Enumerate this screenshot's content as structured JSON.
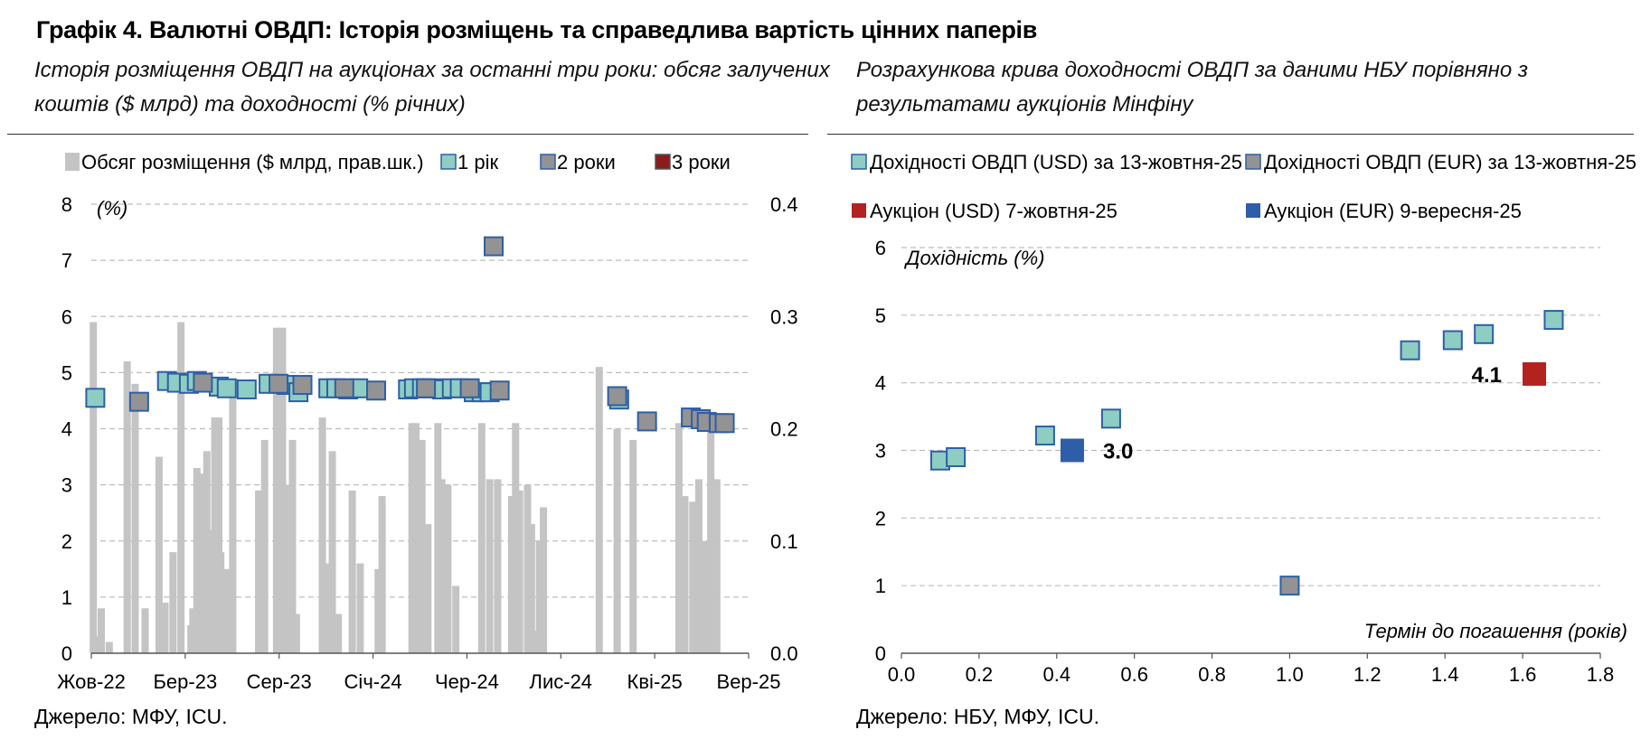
{
  "figure": {
    "title": "Графік 4. Валютні ОВДП: Історія розміщень та справедлива вартість цінних паперів"
  },
  "left_panel": {
    "subtitle_line1": "Історія розміщення ОВДП на аукціонах за останні три роки: обсяг залучених",
    "subtitle_line2": "коштів ($ млрд) та доходності (% річних)",
    "source": "Джерело: МФУ, ICU."
  },
  "right_panel": {
    "subtitle_line1": "Розрахункова крива доходності ОВДП за даними НБУ порівняно з",
    "subtitle_line2": "результатами аукціонів Мінфіну",
    "source": "Джерело: НБУ, МФУ, ICU."
  },
  "chart_data": [
    {
      "type": "bar",
      "combo": "bar + scatter (dual axis)",
      "y_unit_label": "(%)",
      "ylim": [
        0,
        8
      ],
      "yticks": [
        "0",
        "1",
        "2",
        "3",
        "4",
        "5",
        "6",
        "7",
        "8"
      ],
      "y2lim": [
        0,
        0.4
      ],
      "y2ticks": [
        "0.0",
        "0.1",
        "0.2",
        "0.3",
        "0.4"
      ],
      "x_tick_labels": [
        "Жов-22",
        "Бер-23",
        "Сер-23",
        "Січ-24",
        "Чер-24",
        "Лис-24",
        "Кві-25",
        "Вер-25"
      ],
      "grid": "horizontal dashed",
      "legend_position": "top",
      "legend": [
        {
          "label": "Обсяг розміщення ($ млрд, прав.шк.)",
          "color": "#c4c4c4",
          "kind": "bar"
        },
        {
          "label": "1 рік",
          "color": "#8ecdc2",
          "border": "#2e5fa6",
          "kind": "square"
        },
        {
          "label": "2 роки",
          "color": "#939393",
          "border": "#2e5fa6",
          "kind": "square"
        },
        {
          "label": "3 роки",
          "color": "#8a1c1c",
          "border": "#555555",
          "kind": "square"
        }
      ],
      "placement_volume_bn_usd": {
        "x_month_index": [
          0.1,
          0.3,
          0.5,
          0.9,
          1.8,
          2.2,
          2.7,
          3.4,
          3.7,
          4.1,
          4.5,
          5.0,
          5.1,
          5.3,
          5.6,
          5.8,
          6.0,
          6.2,
          6.4,
          6.5,
          6.8,
          7.1,
          8.4,
          8.7,
          9.3,
          9.6,
          9.8,
          10.1,
          10.3,
          11.6,
          11.8,
          12.1,
          12.4,
          13.1,
          13.5,
          14.4,
          14.6,
          16.1,
          16.3,
          16.6,
          16.9,
          17.4,
          17.6,
          17.9,
          18.3,
          19.6,
          20.0,
          20.4,
          21.1,
          21.3,
          21.5,
          21.9,
          22.1,
          22.3,
          22.5,
          22.7,
          25.5,
          26.4,
          27.2,
          29.5,
          29.8,
          30.2,
          30.5,
          30.8,
          31.1,
          31.4
        ],
        "values": [
          0.295,
          0.015,
          0.04,
          0.01,
          0.26,
          0.24,
          0.04,
          0.175,
          0.045,
          0.09,
          0.295,
          0.025,
          0.04,
          0.165,
          0.16,
          0.18,
          0.11,
          0.21,
          0.21,
          0.09,
          0.075,
          0.23,
          0.145,
          0.19,
          0.29,
          0.29,
          0.15,
          0.19,
          0.035,
          0.21,
          0.08,
          0.18,
          0.035,
          0.145,
          0.08,
          0.075,
          0.14,
          0.205,
          0.205,
          0.19,
          0.115,
          0.205,
          0.155,
          0.15,
          0.06,
          0.205,
          0.155,
          0.155,
          0.14,
          0.205,
          0.145,
          0.15,
          0.115,
          0.02,
          0.1,
          0.13,
          0.255,
          0.2,
          0.19,
          0.205,
          0.14,
          0.135,
          0.155,
          0.1,
          0.2,
          0.155
        ]
      },
      "yield_1y": {
        "x_month_index": [
          0.2,
          3.8,
          4.3,
          4.9,
          5.3,
          6.4,
          6.8,
          7.8,
          8.9,
          9.8,
          10.4,
          11.9,
          12.3,
          12.9,
          13.4,
          15.9,
          16.2,
          16.6,
          17.1,
          17.6,
          18.1,
          18.5,
          19.2,
          19.6,
          20.0,
          26.5
        ],
        "values": [
          4.55,
          4.85,
          4.82,
          4.8,
          4.85,
          4.75,
          4.72,
          4.7,
          4.8,
          4.78,
          4.65,
          4.72,
          4.72,
          4.7,
          4.72,
          4.7,
          4.72,
          4.72,
          4.72,
          4.7,
          4.72,
          4.72,
          4.65,
          4.65,
          4.65,
          4.52
        ]
      },
      "yield_2y": {
        "x_month_index": [
          2.4,
          5.6,
          9.4,
          10.6,
          12.7,
          14.3,
          16.8,
          19.0,
          20.5,
          26.4,
          27.9,
          30.1,
          30.6,
          30.9,
          31.5,
          31.8
        ],
        "values": [
          4.48,
          4.82,
          4.8,
          4.78,
          4.72,
          4.68,
          4.72,
          4.72,
          4.68,
          4.58,
          4.13,
          4.2,
          4.17,
          4.12,
          4.1,
          4.1
        ],
        "outliers": [
          {
            "x_month_index": 20.2,
            "value": 7.25
          }
        ]
      },
      "yield_3y": {
        "x_month_index": [],
        "values": []
      }
    },
    {
      "type": "scatter",
      "xlabel": "Термін до погашення (років)",
      "ylabel": "Дохідність (%)",
      "xlim": [
        0,
        1.8
      ],
      "ylim": [
        0,
        6
      ],
      "xticks": [
        "0.0",
        "0.2",
        "0.4",
        "0.6",
        "0.8",
        "1.0",
        "1.2",
        "1.4",
        "1.6",
        "1.8"
      ],
      "yticks": [
        "0",
        "1",
        "2",
        "3",
        "4",
        "5",
        "6"
      ],
      "grid": "horizontal dashed",
      "legend_position": "top",
      "series": [
        {
          "name": "Дохідності ОВДП (USD) за 13-жовтня-25",
          "color": "#8ecdc2",
          "border": "#2e5fa6",
          "points": [
            [
              0.1,
              2.85
            ],
            [
              0.14,
              2.9
            ],
            [
              0.37,
              3.22
            ],
            [
              0.54,
              3.47
            ],
            [
              1.31,
              4.48
            ],
            [
              1.42,
              4.63
            ],
            [
              1.5,
              4.72
            ],
            [
              1.68,
              4.93
            ]
          ]
        },
        {
          "name": "Дохідності ОВДП (EUR) за 13-жовтня-25",
          "color": "#939393",
          "border": "#2e5fa6",
          "points": [
            [
              1.0,
              1.0
            ]
          ]
        },
        {
          "name": "Аукціон (USD) 7-жовтня-25",
          "color": "#b3221f",
          "border": "#b3221f",
          "points": [
            [
              1.63,
              4.13
            ]
          ],
          "label": "4.1"
        },
        {
          "name": "Аукціон (EUR) 9-вересня-25",
          "color": "#2f5ea8",
          "border": "#2f5ea8",
          "points": [
            [
              0.44,
              3.0
            ]
          ],
          "label": "3.0"
        }
      ]
    }
  ]
}
